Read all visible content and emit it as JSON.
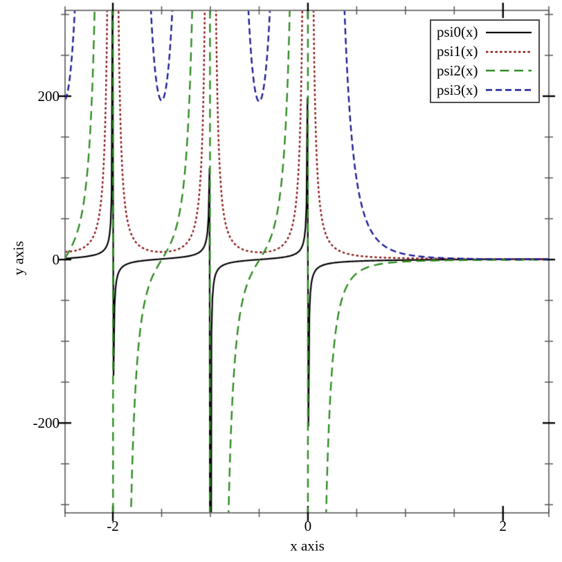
{
  "chart_data": {
    "type": "line",
    "xlabel": "x axis",
    "ylabel": "y axis",
    "xlim": [
      -2.49,
      2.47
    ],
    "ylim": [
      -310,
      305
    ],
    "grid": false,
    "legend_position": "top-right",
    "x_major_ticks": [
      {
        "value": -2,
        "label": "-2"
      },
      {
        "value": 0,
        "label": "0"
      },
      {
        "value": 2,
        "label": "2"
      }
    ],
    "x_minor_ticks": [
      -2.5,
      -1.5,
      -1,
      -0.5,
      0.5,
      1,
      1.5,
      2.5
    ],
    "y_major_ticks": [
      {
        "value": -200,
        "label": "-200"
      },
      {
        "value": 0,
        "label": "0"
      },
      {
        "value": 200,
        "label": "200"
      }
    ],
    "y_minor_ticks": [
      -300,
      -250,
      -150,
      -100,
      -50,
      50,
      100,
      150,
      250,
      300
    ],
    "samples": 500,
    "series": [
      {
        "name": "psi0(x)",
        "fn": "psi0",
        "color": "#000000",
        "dash": [],
        "width": 2.2
      },
      {
        "name": "psi1(x)",
        "fn": "psi1",
        "color": "#8b1a1a",
        "dash": [
          3.5,
          3.2
        ],
        "width": 2.4
      },
      {
        "name": "psi2(x)",
        "fn": "psi2",
        "color": "#2e8b22",
        "dash": [
          13,
          7.5
        ],
        "width": 2.4
      },
      {
        "name": "psi3(x)",
        "fn": "psi3",
        "color": "#1c1c96",
        "dash": [
          9,
          5
        ],
        "width": 2.4
      }
    ],
    "frame_color": "#7a7a7a",
    "major_tick_color": "#000000",
    "minor_tick_color": "#555555",
    "background_color": "#ffffff"
  }
}
